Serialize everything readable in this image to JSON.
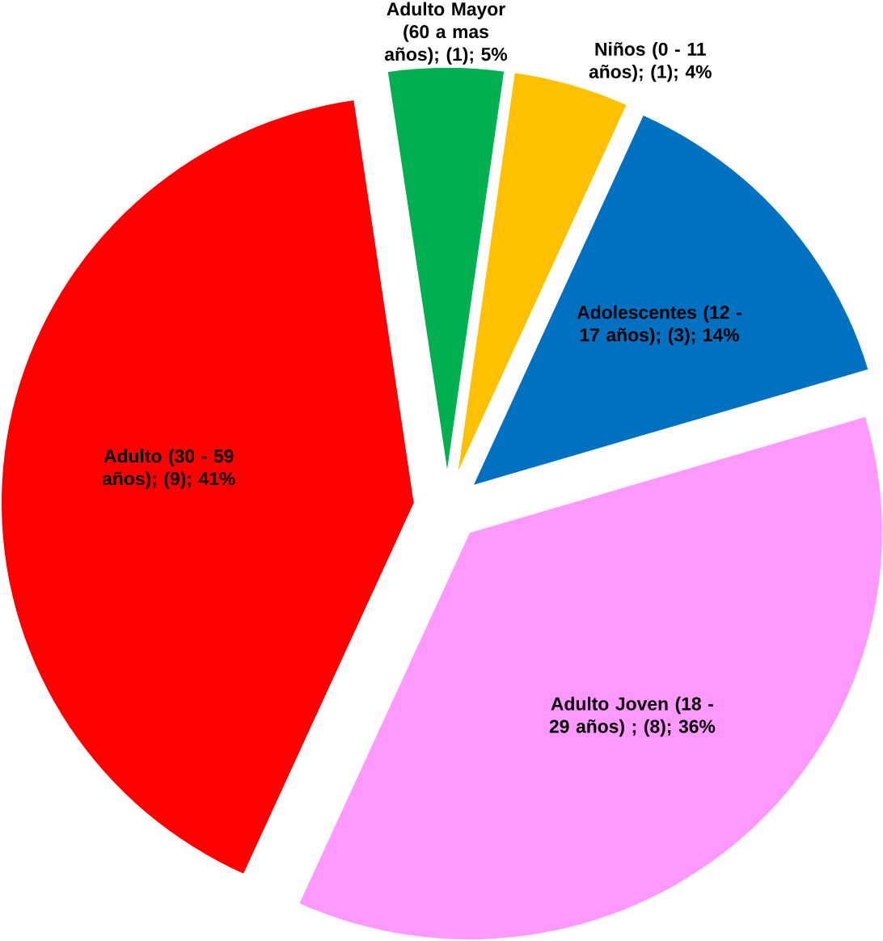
{
  "chart_data": {
    "type": "pie",
    "categories": [
      "Niños (0 - 11 años); (1); 4%",
      "Adolescentes (12 - 17 años); (3); 14%",
      "Adulto Joven (18 - 29 años) ; (8); 36%",
      "Adulto (30 - 59 años); (9); 41%",
      "Adulto Mayor (60 a mas años); (1); 5%"
    ],
    "values": [
      1,
      3,
      8,
      9,
      1
    ],
    "colors": [
      "#ffc000",
      "#0070c0",
      "#ff99ff",
      "#ff0000",
      "#00b050"
    ]
  }
}
